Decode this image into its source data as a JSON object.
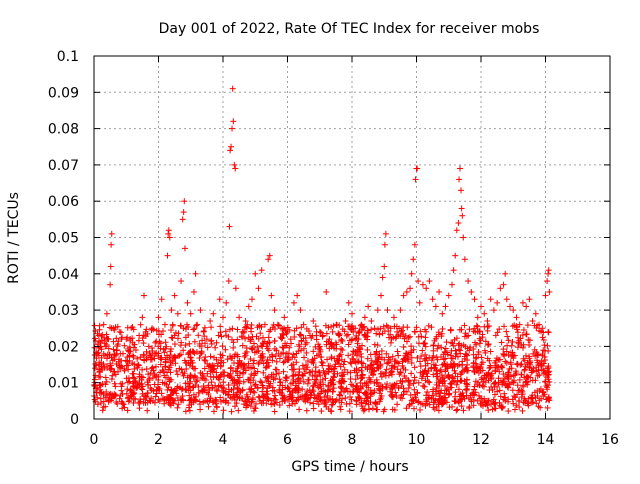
{
  "chart_data": {
    "type": "scatter",
    "title": "Day 001 of 2022, Rate Of TEC Index for receiver mobs",
    "xlabel": "GPS time / hours",
    "ylabel": "ROTI / TECUs",
    "xlim": [
      0,
      16
    ],
    "ylim": [
      0,
      0.1
    ],
    "xticks": [
      0,
      2,
      4,
      6,
      8,
      10,
      12,
      14,
      16
    ],
    "yticks": [
      0,
      0.01,
      0.02,
      0.03,
      0.04,
      0.05,
      0.06,
      0.07,
      0.08,
      0.09,
      0.1
    ],
    "xtick_labels": [
      "0",
      "2",
      "4",
      "6",
      "8",
      "10",
      "12",
      "14",
      "16"
    ],
    "ytick_labels": [
      "0",
      "0.01",
      "0.02",
      "0.03",
      "0.04",
      "0.05",
      "0.06",
      "0.07",
      "0.08",
      "0.09",
      "0.1"
    ],
    "grid": true,
    "marker": "+",
    "series": [
      {
        "name": "ROTI",
        "color": "#ff0000",
        "points": [
          [
            0.05,
            0.012
          ],
          [
            0.1,
            0.018
          ],
          [
            0.15,
            0.023
          ],
          [
            0.2,
            0.021
          ],
          [
            0.25,
            0.014
          ],
          [
            0.3,
            0.026
          ],
          [
            0.35,
            0.02
          ],
          [
            0.4,
            0.029
          ],
          [
            0.45,
            0.022
          ],
          [
            0.5,
            0.037
          ],
          [
            0.52,
            0.042
          ],
          [
            0.53,
            0.048
          ],
          [
            0.55,
            0.051
          ],
          [
            0.6,
            0.025
          ],
          [
            0.7,
            0.019
          ],
          [
            0.8,
            0.024
          ],
          [
            0.9,
            0.018
          ],
          [
            1.0,
            0.022
          ],
          [
            1.1,
            0.016
          ],
          [
            1.2,
            0.021
          ],
          [
            1.3,
            0.019
          ],
          [
            1.4,
            0.023
          ],
          [
            1.5,
            0.028
          ],
          [
            1.55,
            0.034
          ],
          [
            1.6,
            0.024
          ],
          [
            1.7,
            0.02
          ],
          [
            1.8,
            0.025
          ],
          [
            1.9,
            0.021
          ],
          [
            2.0,
            0.028
          ],
          [
            2.1,
            0.033
          ],
          [
            2.2,
            0.026
          ],
          [
            2.28,
            0.045
          ],
          [
            2.3,
            0.051
          ],
          [
            2.32,
            0.052
          ],
          [
            2.35,
            0.05
          ],
          [
            2.4,
            0.03
          ],
          [
            2.5,
            0.034
          ],
          [
            2.6,
            0.029
          ],
          [
            2.7,
            0.038
          ],
          [
            2.75,
            0.055
          ],
          [
            2.78,
            0.057
          ],
          [
            2.8,
            0.06
          ],
          [
            2.82,
            0.047
          ],
          [
            2.9,
            0.032
          ],
          [
            3.0,
            0.029
          ],
          [
            3.1,
            0.035
          ],
          [
            3.15,
            0.04
          ],
          [
            3.2,
            0.026
          ],
          [
            3.3,
            0.03
          ],
          [
            3.4,
            0.024
          ],
          [
            3.5,
            0.022
          ],
          [
            3.6,
            0.027
          ],
          [
            3.7,
            0.029
          ],
          [
            3.8,
            0.021
          ],
          [
            3.9,
            0.033
          ],
          [
            4.0,
            0.028
          ],
          [
            4.1,
            0.032
          ],
          [
            4.18,
            0.038
          ],
          [
            4.2,
            0.053
          ],
          [
            4.22,
            0.074
          ],
          [
            4.25,
            0.075
          ],
          [
            4.28,
            0.08
          ],
          [
            4.3,
            0.091
          ],
          [
            4.32,
            0.082
          ],
          [
            4.35,
            0.07
          ],
          [
            4.38,
            0.069
          ],
          [
            4.4,
            0.036
          ],
          [
            4.5,
            0.028
          ],
          [
            4.6,
            0.024
          ],
          [
            4.7,
            0.027
          ],
          [
            4.8,
            0.031
          ],
          [
            4.9,
            0.033
          ],
          [
            5.0,
            0.04
          ],
          [
            5.1,
            0.036
          ],
          [
            5.2,
            0.041
          ],
          [
            5.3,
            0.026
          ],
          [
            5.4,
            0.044
          ],
          [
            5.45,
            0.045
          ],
          [
            5.5,
            0.034
          ],
          [
            5.6,
            0.03
          ],
          [
            5.7,
            0.026
          ],
          [
            5.8,
            0.025
          ],
          [
            5.9,
            0.028
          ],
          [
            6.0,
            0.024
          ],
          [
            6.1,
            0.022
          ],
          [
            6.2,
            0.032
          ],
          [
            6.3,
            0.034
          ],
          [
            6.4,
            0.03
          ],
          [
            6.5,
            0.026
          ],
          [
            6.6,
            0.021
          ],
          [
            6.7,
            0.023
          ],
          [
            6.8,
            0.027
          ],
          [
            6.9,
            0.024
          ],
          [
            7.0,
            0.02
          ],
          [
            7.1,
            0.023
          ],
          [
            7.2,
            0.035
          ],
          [
            7.3,
            0.022
          ],
          [
            7.4,
            0.024
          ],
          [
            7.5,
            0.021
          ],
          [
            7.6,
            0.023
          ],
          [
            7.7,
            0.019
          ],
          [
            7.8,
            0.027
          ],
          [
            7.9,
            0.032
          ],
          [
            8.0,
            0.029
          ],
          [
            8.1,
            0.025
          ],
          [
            8.2,
            0.022
          ],
          [
            8.3,
            0.026
          ],
          [
            8.4,
            0.028
          ],
          [
            8.5,
            0.031
          ],
          [
            8.6,
            0.027
          ],
          [
            8.7,
            0.025
          ],
          [
            8.8,
            0.03
          ],
          [
            8.9,
            0.034
          ],
          [
            8.95,
            0.039
          ],
          [
            9.0,
            0.042
          ],
          [
            9.02,
            0.048
          ],
          [
            9.05,
            0.051
          ],
          [
            9.1,
            0.03
          ],
          [
            9.2,
            0.025
          ],
          [
            9.3,
            0.028
          ],
          [
            9.4,
            0.024
          ],
          [
            9.5,
            0.03
          ],
          [
            9.6,
            0.034
          ],
          [
            9.7,
            0.035
          ],
          [
            9.8,
            0.036
          ],
          [
            9.85,
            0.04
          ],
          [
            9.9,
            0.044
          ],
          [
            9.95,
            0.048
          ],
          [
            9.97,
            0.066
          ],
          [
            10.0,
            0.069
          ],
          [
            10.02,
            0.069
          ],
          [
            10.05,
            0.038
          ],
          [
            10.1,
            0.032
          ],
          [
            10.2,
            0.037
          ],
          [
            10.3,
            0.036
          ],
          [
            10.4,
            0.038
          ],
          [
            10.5,
            0.033
          ],
          [
            10.6,
            0.031
          ],
          [
            10.7,
            0.035
          ],
          [
            10.8,
            0.029
          ],
          [
            10.9,
            0.031
          ],
          [
            11.0,
            0.034
          ],
          [
            11.1,
            0.037
          ],
          [
            11.15,
            0.041
          ],
          [
            11.2,
            0.045
          ],
          [
            11.25,
            0.052
          ],
          [
            11.3,
            0.054
          ],
          [
            11.32,
            0.066
          ],
          [
            11.35,
            0.069
          ],
          [
            11.38,
            0.063
          ],
          [
            11.4,
            0.058
          ],
          [
            11.42,
            0.056
          ],
          [
            11.45,
            0.05
          ],
          [
            11.5,
            0.044
          ],
          [
            11.6,
            0.038
          ],
          [
            11.7,
            0.035
          ],
          [
            11.8,
            0.033
          ],
          [
            11.9,
            0.028
          ],
          [
            12.0,
            0.031
          ],
          [
            12.1,
            0.029
          ],
          [
            12.2,
            0.027
          ],
          [
            12.3,
            0.033
          ],
          [
            12.4,
            0.03
          ],
          [
            12.5,
            0.032
          ],
          [
            12.6,
            0.036
          ],
          [
            12.7,
            0.037
          ],
          [
            12.75,
            0.04
          ],
          [
            12.8,
            0.033
          ],
          [
            12.9,
            0.031
          ],
          [
            13.0,
            0.03
          ],
          [
            13.1,
            0.028
          ],
          [
            13.2,
            0.026
          ],
          [
            13.3,
            0.032
          ],
          [
            13.4,
            0.031
          ],
          [
            13.5,
            0.033
          ],
          [
            13.6,
            0.027
          ],
          [
            13.7,
            0.029
          ],
          [
            13.8,
            0.026
          ],
          [
            13.9,
            0.025
          ],
          [
            14.0,
            0.034
          ],
          [
            14.05,
            0.038
          ],
          [
            14.08,
            0.04
          ],
          [
            14.1,
            0.041
          ],
          [
            14.12,
            0.035
          ]
        ],
        "dense_band": {
          "x_range": [
            0.0,
            14.12
          ],
          "core_range": [
            0.004,
            0.018
          ],
          "upper_envelope_mean": 0.022,
          "minimum": 0.002
        }
      }
    ]
  }
}
